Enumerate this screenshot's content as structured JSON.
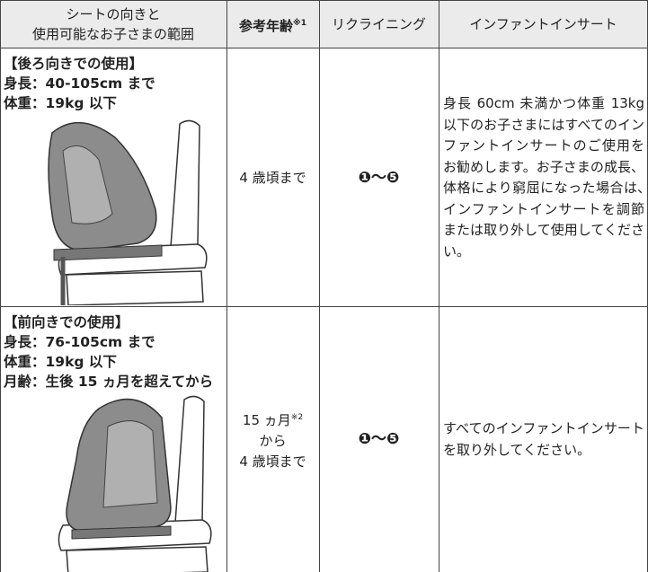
{
  "header": {
    "cells": [
      {
        "lines": [
          "シートの向きと",
          "使用可能なお子さまの範囲"
        ]
      },
      {
        "text": "参考年齢",
        "note": "※1"
      },
      {
        "text": "リクライニング"
      },
      {
        "text": "インファントインサート"
      }
    ]
  },
  "rows": [
    {
      "conditions": [
        "【後ろ向きでの使用】",
        "身長：40-105cm まで",
        "体重：19kg 以下"
      ],
      "age": {
        "lines": [
          "4 歳頃まで"
        ]
      },
      "reclining": "❶〜❺",
      "insert": "身長 60cm 未満かつ体重 13kg 以下のお子さまにはすべてのインファントインサートのご使用をお勧めします。お子さまの成長、体格により窮屈になった場合は､インファントインサートを調節または取り外して使用してください。"
    },
    {
      "conditions": [
        "【前向きでの使用】",
        "身長：76-105cm まで",
        "体重：19kg 以下",
        "月齢：生後 15 ヵ月を超えてから"
      ],
      "age": {
        "lines": [
          "15 ヵ月",
          "から",
          "4 歳頃まで"
        ],
        "note": "※2"
      },
      "reclining": "❶〜❺",
      "insert": "すべてのインファントインサートを取り外してください。"
    }
  ]
}
